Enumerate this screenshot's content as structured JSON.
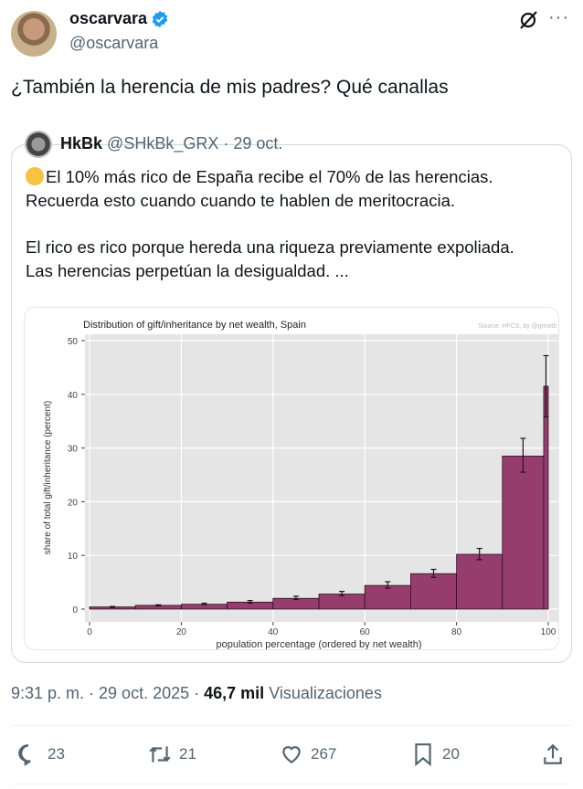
{
  "author": {
    "name": "oscarvara",
    "handle": "@oscarvara",
    "verified": true
  },
  "tweet_text": "¿También la herencia de mis padres?  Qué canallas",
  "quote": {
    "name": "HkBk",
    "handle": "@SHkBk_GRX",
    "date": "· 29 oct.",
    "lines": [
      "El 10% más rico de España recibe el 70% de las herencias.",
      "Recuerda esto cuando cuando te hablen de meritocracia.",
      "El rico es rico porque hereda una riqueza previamente expoliada.",
      "Las herencias perpetúan la desigualdad. ..."
    ],
    "emoji": "bank-coin-icon"
  },
  "meta": {
    "time": "9:31 p. m. · 29 oct. 2025 ·",
    "views": "46,7 mil",
    "views_label": "Visualizaciones"
  },
  "actions": {
    "replies": "23",
    "reposts": "21",
    "likes": "267",
    "bookmarks": "20"
  },
  "colors": {
    "bar": "#963d6e",
    "panel": "#e5e5e5",
    "verified": "#1d9bf0"
  },
  "chart_data": {
    "type": "bar",
    "title": "Distribution of gift/inheritance by net wealth, Spain",
    "source": "Source: HFCS, by @gmvidi",
    "xlabel": "population percentage (ordered by net wealth)",
    "ylabel": "share of total gift/inheritance (percent)",
    "xlim": [
      0,
      100
    ],
    "ylim": [
      0,
      50
    ],
    "xticks": [
      "0",
      "20",
      "40",
      "60",
      "80",
      "100"
    ],
    "yticks": [
      "0",
      "10",
      "20",
      "30",
      "40",
      "50"
    ],
    "grid": true,
    "bins": [
      [
        0,
        10
      ],
      [
        10,
        20
      ],
      [
        20,
        30
      ],
      [
        30,
        40
      ],
      [
        40,
        50
      ],
      [
        50,
        60
      ],
      [
        60,
        70
      ],
      [
        70,
        80
      ],
      [
        80,
        90
      ],
      [
        90,
        99
      ],
      [
        99,
        100
      ]
    ],
    "values": [
      0.4,
      0.7,
      0.9,
      1.3,
      2.0,
      2.8,
      4.4,
      6.6,
      10.2,
      28.5,
      41.5
    ],
    "error_low": [
      0.3,
      0.6,
      0.8,
      1.1,
      1.8,
      2.5,
      3.9,
      5.9,
      9.2,
      25.5,
      35.8
    ],
    "error_high": [
      0.5,
      0.8,
      1.1,
      1.6,
      2.4,
      3.3,
      5.1,
      7.4,
      11.3,
      31.8,
      47.2
    ]
  }
}
